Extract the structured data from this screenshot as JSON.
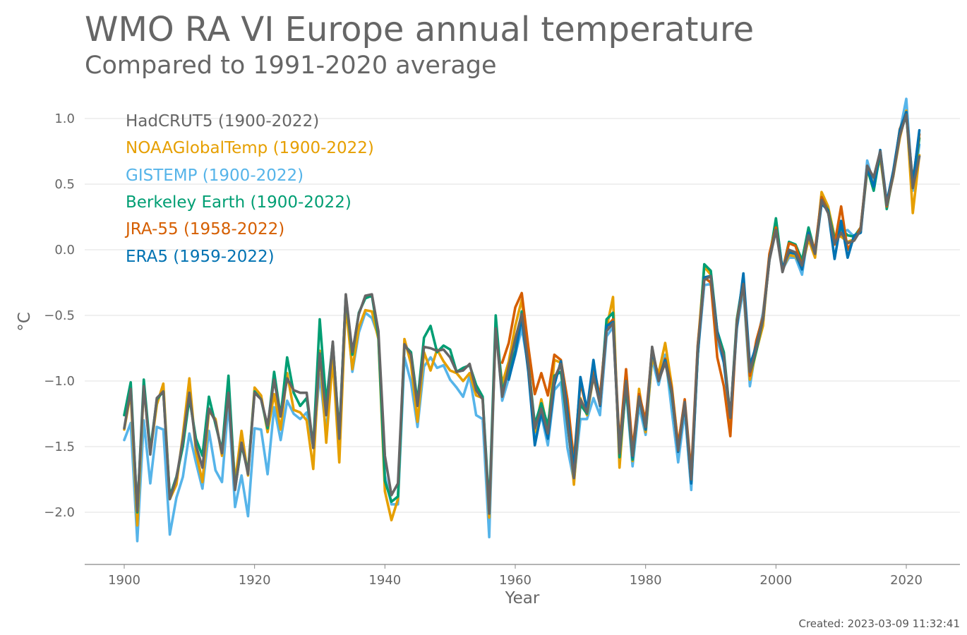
{
  "chart_data": {
    "type": "line",
    "title": "WMO RA VI Europe annual temperature",
    "subtitle": "Compared to 1991-2020 average",
    "xlabel": "Year",
    "ylabel": "°C",
    "xlim": [
      1900,
      2022
    ],
    "ylim": [
      -2.3,
      1.2
    ],
    "xticks": [
      1900,
      1920,
      1940,
      1960,
      1980,
      2000,
      2020
    ],
    "yticks": [
      1.0,
      0.5,
      0.0,
      -0.5,
      -1.0,
      -1.5,
      -2.0
    ],
    "ytick_labels": [
      "1.0",
      "0.5",
      "0.0",
      "−0.5",
      "−1.0",
      "−1.5",
      "−2.0"
    ],
    "grid": true,
    "legend_position": "top-left",
    "created": "Created: 2023-03-09 11:32:41",
    "series": [
      {
        "name": "GISTEMP (1900-2022)",
        "color": "#56B4E9",
        "start": 1900,
        "values": [
          -1.45,
          -1.32,
          -2.22,
          -1.3,
          -1.78,
          -1.35,
          -1.37,
          -2.17,
          -1.89,
          -1.73,
          -1.4,
          -1.62,
          -1.82,
          -1.38,
          -1.68,
          -1.77,
          -1.16,
          -1.96,
          -1.72,
          -2.03,
          -1.36,
          -1.37,
          -1.71,
          -1.2,
          -1.45,
          -1.15,
          -1.25,
          -1.29,
          -1.24,
          -1.5,
          -0.95,
          -1.4,
          -0.76,
          -1.42,
          -0.36,
          -0.93,
          -0.63,
          -0.48,
          -0.52,
          -0.66,
          -1.72,
          -1.94,
          -1.94,
          -0.82,
          -1.01,
          -1.35,
          -0.89,
          -0.82,
          -0.9,
          -0.88,
          -0.99,
          -1.05,
          -1.12,
          -0.96,
          -1.26,
          -1.29,
          -2.19,
          -0.55,
          -1.15,
          -0.98,
          -0.8,
          -0.6,
          -0.89,
          -1.46,
          -1.26,
          -1.49,
          -1.07,
          -1.01,
          -1.51,
          -1.76,
          -1.29,
          -1.29,
          -1.13,
          -1.26,
          -0.66,
          -0.59,
          -1.49,
          -1.07,
          -1.65,
          -1.19,
          -1.41,
          -0.83,
          -1.03,
          -0.8,
          -1.22,
          -1.62,
          -1.23,
          -1.83,
          -0.8,
          -0.27,
          -0.26,
          -0.69,
          -0.86,
          -1.31,
          -0.6,
          -0.3,
          -1.04,
          -0.73,
          -0.48,
          -0.08,
          0.23,
          -0.15,
          -0.06,
          -0.06,
          -0.19,
          0.14,
          -0.04,
          0.37,
          0.32,
          0.08,
          0.13,
          0.15,
          0.1,
          0.13,
          0.68,
          0.5,
          0.75,
          0.34,
          0.56,
          0.9,
          1.15,
          0.45,
          0.8
        ]
      },
      {
        "name": "NOAAGlobalTemp (1900-2022)",
        "color": "#E69F00",
        "start": 1900,
        "values": [
          -1.37,
          -1.09,
          -2.1,
          -1.04,
          -1.55,
          -1.18,
          -1.02,
          -1.9,
          -1.79,
          -1.41,
          -0.98,
          -1.54,
          -1.77,
          -1.23,
          -1.29,
          -1.57,
          -1.08,
          -1.77,
          -1.38,
          -1.72,
          -1.05,
          -1.11,
          -1.39,
          -1.1,
          -1.37,
          -0.94,
          -1.22,
          -1.24,
          -1.3,
          -1.67,
          -0.77,
          -1.47,
          -0.83,
          -1.62,
          -0.42,
          -0.91,
          -0.59,
          -0.46,
          -0.47,
          -0.68,
          -1.84,
          -2.06,
          -1.9,
          -0.68,
          -0.87,
          -1.31,
          -0.78,
          -0.92,
          -0.76,
          -0.85,
          -0.92,
          -0.94,
          -1.0,
          -0.94,
          -1.11,
          -1.13,
          -2.04,
          -0.6,
          -1.02,
          -0.85,
          -0.58,
          -0.38,
          -0.84,
          -1.39,
          -1.14,
          -1.37,
          -0.84,
          -0.86,
          -1.24,
          -1.79,
          -1.13,
          -1.26,
          -0.97,
          -1.16,
          -0.6,
          -0.36,
          -1.66,
          -0.99,
          -1.61,
          -1.06,
          -1.39,
          -0.83,
          -0.94,
          -0.71,
          -1.03,
          -1.49,
          -1.16,
          -1.77,
          -0.74,
          -0.13,
          -0.19,
          -0.64,
          -0.8,
          -1.31,
          -0.56,
          -0.26,
          -0.99,
          -0.77,
          -0.58,
          -0.04,
          0.2,
          -0.15,
          -0.04,
          -0.05,
          -0.13,
          0.08,
          -0.06,
          0.44,
          0.33,
          0.1,
          0.1,
          0.06,
          0.08,
          0.15,
          0.6,
          0.5,
          0.7,
          0.34,
          0.56,
          0.85,
          1.06,
          0.28,
          0.72
        ]
      },
      {
        "name": "Berkeley Earth (1900-2022)",
        "color": "#009E73",
        "start": 1900,
        "values": [
          -1.26,
          -1.01,
          -2.0,
          -0.99,
          -1.53,
          -1.14,
          -1.08,
          -1.88,
          -1.73,
          -1.5,
          -1.13,
          -1.44,
          -1.57,
          -1.12,
          -1.33,
          -1.53,
          -0.96,
          -1.82,
          -1.49,
          -1.69,
          -1.08,
          -1.14,
          -1.36,
          -0.93,
          -1.27,
          -0.82,
          -1.09,
          -1.19,
          -1.13,
          -1.5,
          -0.53,
          -1.17,
          -0.71,
          -1.41,
          -0.35,
          -0.8,
          -0.48,
          -0.37,
          -0.35,
          -0.66,
          -1.76,
          -1.92,
          -1.88,
          -0.73,
          -0.78,
          -1.16,
          -0.67,
          -0.58,
          -0.78,
          -0.73,
          -0.76,
          -0.93,
          -0.9,
          -0.88,
          -1.03,
          -1.12,
          -1.97,
          -0.5,
          -1.08,
          -0.92,
          -0.77,
          -0.47,
          -0.87,
          -1.33,
          -1.17,
          -1.34,
          -0.96,
          -0.93,
          -1.33,
          -1.73,
          -1.18,
          -1.25,
          -0.95,
          -1.18,
          -0.53,
          -0.48,
          -1.58,
          -1.04,
          -1.6,
          -1.12,
          -1.37,
          -0.75,
          -1.0,
          -0.85,
          -1.1,
          -1.52,
          -1.17,
          -1.77,
          -0.81,
          -0.11,
          -0.16,
          -0.62,
          -0.78,
          -1.28,
          -0.53,
          -0.22,
          -0.95,
          -0.77,
          -0.53,
          -0.07,
          0.24,
          -0.16,
          0.06,
          0.04,
          -0.08,
          0.17,
          -0.02,
          0.4,
          0.3,
          0.08,
          0.16,
          0.11,
          0.1,
          0.17,
          0.62,
          0.45,
          0.74,
          0.31,
          0.58,
          0.89,
          1.02,
          0.48,
          0.85
        ]
      },
      {
        "name": "JRA-55 (1958-2022)",
        "color": "#D55E00",
        "start": 1958,
        "values": [
          -0.86,
          -0.71,
          -0.44,
          -0.33,
          -0.74,
          -1.1,
          -0.94,
          -1.11,
          -0.8,
          -0.84,
          -1.14,
          -1.61,
          -1.01,
          -1.22,
          -0.89,
          -1.12,
          -0.59,
          -0.53,
          -1.48,
          -0.91,
          -1.52,
          -1.1,
          -1.3,
          -0.76,
          -0.98,
          -0.83,
          -1.05,
          -1.49,
          -1.14,
          -1.7,
          -0.73,
          -0.21,
          -0.25,
          -0.82,
          -1.04,
          -1.42,
          -0.55,
          -0.23,
          -0.96,
          -0.69,
          -0.51,
          -0.03,
          0.17,
          -0.16,
          0.05,
          0.03,
          -0.12,
          0.13,
          0.0,
          0.4,
          0.29,
          0.04,
          0.33,
          0.0,
          0.08,
          0.17,
          0.64,
          0.55,
          0.75,
          0.33,
          0.57,
          0.92,
          1.04,
          0.52,
          0.88
        ]
      },
      {
        "name": "ERA5 (1959-2022)",
        "color": "#0072B2",
        "start": 1959,
        "values": [
          -0.99,
          -0.79,
          -0.52,
          -0.93,
          -1.49,
          -1.24,
          -1.44,
          -1.03,
          -0.85,
          -1.24,
          -1.68,
          -0.97,
          -1.22,
          -0.84,
          -1.19,
          -0.58,
          -0.55,
          -1.53,
          -1.0,
          -1.58,
          -1.12,
          -1.37,
          -0.76,
          -1.0,
          -0.84,
          -1.08,
          -1.54,
          -1.17,
          -1.78,
          -0.8,
          -0.21,
          -0.2,
          -0.62,
          -0.86,
          -1.27,
          -0.59,
          -0.18,
          -0.88,
          -0.73,
          -0.53,
          -0.07,
          0.15,
          -0.14,
          -0.02,
          -0.03,
          -0.15,
          0.13,
          -0.03,
          0.35,
          0.3,
          -0.07,
          0.22,
          -0.06,
          0.11,
          0.13,
          0.63,
          0.48,
          0.76,
          0.36,
          0.6,
          0.91,
          1.05,
          0.5,
          0.91
        ]
      },
      {
        "name": "HadCRUT5 (1900-2022)",
        "color": "#666666",
        "start": 1900,
        "values": [
          -1.36,
          -1.06,
          -1.99,
          -1.04,
          -1.56,
          -1.13,
          -1.08,
          -1.9,
          -1.74,
          -1.45,
          -1.09,
          -1.49,
          -1.66,
          -1.21,
          -1.31,
          -1.55,
          -1.09,
          -1.83,
          -1.47,
          -1.71,
          -1.09,
          -1.14,
          -1.34,
          -0.99,
          -1.27,
          -0.98,
          -1.07,
          -1.09,
          -1.09,
          -1.51,
          -0.79,
          -1.26,
          -0.7,
          -1.44,
          -0.34,
          -0.78,
          -0.49,
          -0.35,
          -0.34,
          -0.62,
          -1.57,
          -1.87,
          -1.78,
          -0.72,
          -0.8,
          -1.19,
          -0.74,
          -0.75,
          -0.77,
          -0.76,
          -0.82,
          -0.93,
          -0.92,
          -0.87,
          -1.07,
          -1.14,
          -2.01,
          -0.6,
          -1.12,
          -0.89,
          -0.68,
          -0.49,
          -0.88,
          -1.36,
          -1.21,
          -1.4,
          -0.98,
          -0.87,
          -1.32,
          -1.74,
          -1.14,
          -1.24,
          -0.96,
          -1.18,
          -0.62,
          -0.56,
          -1.55,
          -1.0,
          -1.57,
          -1.12,
          -1.35,
          -0.74,
          -1.0,
          -0.86,
          -1.08,
          -1.53,
          -1.16,
          -1.75,
          -0.75,
          -0.23,
          -0.2,
          -0.66,
          -0.81,
          -1.28,
          -0.56,
          -0.26,
          -0.93,
          -0.75,
          -0.53,
          -0.08,
          0.15,
          -0.17,
          0.0,
          -0.02,
          -0.12,
          0.11,
          -0.03,
          0.38,
          0.28,
          0.05,
          0.13,
          0.05,
          0.07,
          0.15,
          0.64,
          0.55,
          0.75,
          0.34,
          0.57,
          0.87,
          1.03,
          0.47,
          0.71
        ]
      }
    ],
    "legend": [
      {
        "label": "HadCRUT5 (1900-2022)",
        "color": "#666666"
      },
      {
        "label": "NOAAGlobalTemp (1900-2022)",
        "color": "#E69F00"
      },
      {
        "label": "GISTEMP (1900-2022)",
        "color": "#56B4E9"
      },
      {
        "label": "Berkeley Earth (1900-2022)",
        "color": "#009E73"
      },
      {
        "label": "JRA-55 (1958-2022)",
        "color": "#D55E00"
      },
      {
        "label": "ERA5 (1959-2022)",
        "color": "#0072B2"
      }
    ]
  }
}
